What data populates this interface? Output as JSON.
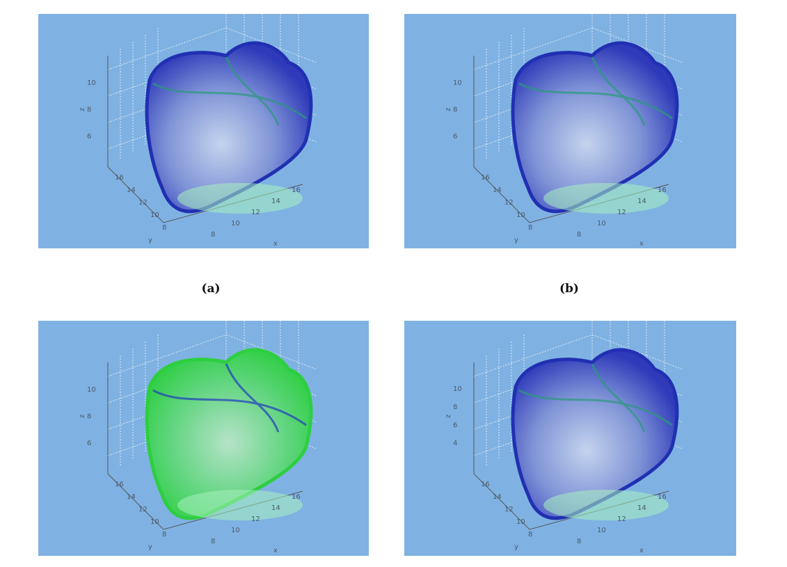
{
  "panels": [
    {
      "caption": "(a)",
      "z_ticks": [
        "6",
        "8",
        "10"
      ],
      "y_ticks": [
        "8",
        "10",
        "12",
        "14",
        "16"
      ],
      "x_ticks": [
        "8",
        "10",
        "12",
        "14",
        "16"
      ],
      "x_label": "x",
      "y_label": "y",
      "z_label": "z"
    },
    {
      "caption": "(b)",
      "z_ticks": [
        "6",
        "8",
        "10"
      ],
      "y_ticks": [
        "8",
        "10",
        "12",
        "14",
        "16"
      ],
      "x_ticks": [
        "8",
        "10",
        "12",
        "14",
        "16"
      ],
      "x_label": "x",
      "y_label": "y",
      "z_label": "z"
    },
    {
      "z_ticks": [
        "6",
        "8",
        "10"
      ],
      "y_ticks": [
        "8",
        "10",
        "12",
        "14",
        "16"
      ],
      "x_ticks": [
        "8",
        "10",
        "12",
        "14",
        "16"
      ],
      "x_label": "x",
      "y_label": "y",
      "z_label": "z"
    },
    {
      "z_ticks": [
        "4",
        "6",
        "8",
        "10"
      ],
      "y_ticks": [
        "8",
        "10",
        "12",
        "14",
        "16"
      ],
      "x_ticks": [
        "8",
        "10",
        "12",
        "14",
        "16"
      ],
      "x_label": "x",
      "y_label": "y",
      "z_label": "z"
    }
  ]
}
